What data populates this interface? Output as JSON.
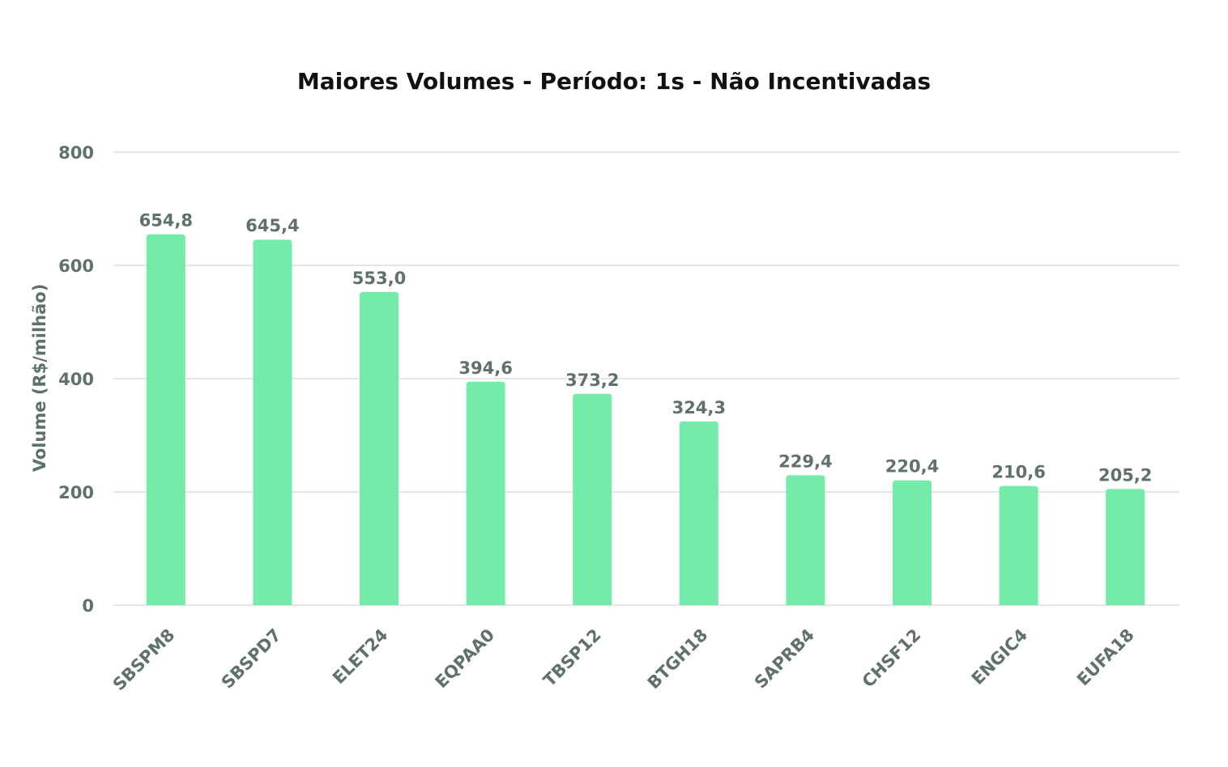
{
  "chart_data": {
    "type": "bar",
    "title": "Maiores Volumes - Período: 1s - Não Incentivadas",
    "xlabel": "",
    "ylabel": "Volume (R$/milhão)",
    "ylim": [
      0,
      800
    ],
    "yticks": [
      "0",
      "200",
      "400",
      "600",
      "800"
    ],
    "categories": [
      "SBSPM8",
      "SBSPD7",
      "ELET24",
      "EQPAA0",
      "TBSP12",
      "BTGH18",
      "SAPRB4",
      "CHSF12",
      "ENGIC4",
      "EUFA18"
    ],
    "values": [
      654.8,
      645.4,
      553.0,
      394.6,
      373.2,
      324.3,
      229.4,
      220.4,
      210.6,
      205.2
    ],
    "data_labels": [
      "654,8",
      "645,4",
      "553,0",
      "394,6",
      "373,2",
      "324,3",
      "229,4",
      "220,4",
      "210,6",
      "205,2"
    ],
    "grid": true,
    "legend": "none"
  },
  "colors": {
    "bar": "#72eca8",
    "grid": "#e6e6e6",
    "text": "#5f716a",
    "title": "#111111"
  }
}
